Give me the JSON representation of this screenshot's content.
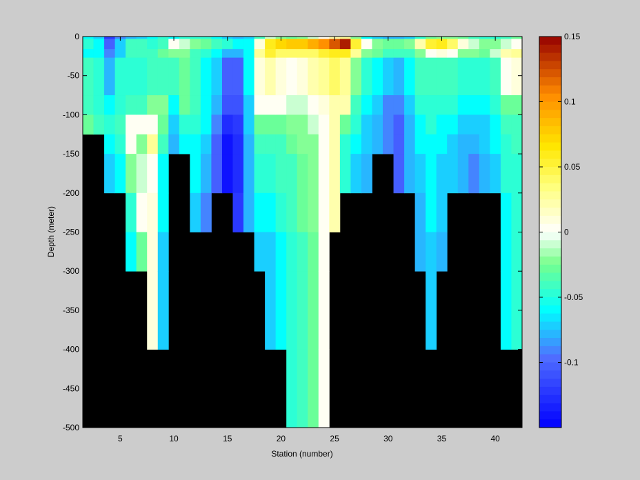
{
  "chart_data": {
    "type": "heatmap",
    "title": "",
    "xlabel": "Station (number)",
    "ylabel": "Depth (meter)",
    "xlim": [
      1.5,
      42.5
    ],
    "ylim": [
      -500,
      0
    ],
    "xticks": [
      5,
      10,
      15,
      20,
      25,
      30,
      35,
      40
    ],
    "yticks": [
      0,
      -50,
      -100,
      -150,
      -200,
      -250,
      -300,
      -350,
      -400,
      -450,
      -500
    ],
    "grid": false,
    "masked_color": "#000000",
    "colorbar": {
      "location": "right",
      "range": [
        -0.15,
        0.15
      ],
      "ticks": [
        0.15,
        0.1,
        0.05,
        0,
        -0.05,
        -0.1
      ],
      "colormap": "jet-white"
    },
    "stations": [
      2,
      3,
      4,
      5,
      6,
      7,
      8,
      9,
      10,
      11,
      12,
      13,
      14,
      15,
      16,
      17,
      18,
      19,
      20,
      21,
      22,
      23,
      24,
      25,
      26,
      27,
      28,
      29,
      30,
      31,
      32,
      33,
      34,
      35,
      36,
      37,
      38,
      39,
      40,
      41,
      42
    ],
    "depths": [
      0,
      -5,
      -20,
      -40,
      -60,
      -80,
      -100,
      -125,
      -150,
      -175,
      -200,
      -225,
      -250,
      -275,
      -300,
      -325,
      -350,
      -375,
      -400,
      -425,
      -450,
      -475,
      -500
    ],
    "depth_bin_edges": [
      0,
      -3,
      -16,
      -27,
      -75,
      -100,
      -125,
      -150,
      -200,
      -250,
      -300,
      -400,
      -500
    ],
    "max_depth": [
      -125,
      -125,
      -200,
      -200,
      -300,
      -300,
      -400,
      -400,
      -150,
      -150,
      -250,
      -250,
      -200,
      -200,
      -250,
      -250,
      -300,
      -400,
      -400,
      -500,
      -500,
      -500,
      -500,
      -250,
      -200,
      -200,
      -200,
      -150,
      -150,
      -200,
      -200,
      -300,
      -400,
      -300,
      -200,
      -200,
      -200,
      -200,
      -200,
      -400,
      -400
    ],
    "values": [
      [
        -0.06,
        -0.05,
        -0.06,
        -0.04,
        -0.04,
        -0.03,
        -0.05,
        -0.06,
        -0.07,
        -0.08
      ],
      [
        -0.07,
        -0.06,
        -0.06,
        -0.05,
        -0.05,
        -0.04,
        -0.07,
        -0.07,
        -0.08,
        -0.09
      ],
      [
        -0.12,
        -0.1,
        -0.09,
        -0.08,
        -0.06,
        -0.05,
        -0.06,
        -0.07,
        -0.08,
        -0.1
      ],
      [
        -0.09,
        -0.07,
        -0.07,
        -0.05,
        -0.05,
        -0.04,
        -0.05,
        -0.06,
        -0.07,
        -0.08
      ],
      [
        -0.08,
        -0.04,
        -0.04,
        -0.05,
        -0.04,
        0.0,
        0.0,
        -0.02,
        -0.05,
        -0.06
      ],
      [
        -0.07,
        -0.04,
        -0.04,
        -0.05,
        -0.04,
        0.0,
        -0.02,
        -0.01,
        0.0,
        -0.03
      ],
      [
        -0.06,
        -0.05,
        -0.04,
        -0.04,
        -0.02,
        0.0,
        0.03,
        0.0,
        0.01,
        0.01
      ],
      [
        -0.05,
        -0.04,
        -0.03,
        -0.04,
        -0.02,
        -0.03,
        -0.04,
        -0.06,
        -0.06,
        -0.07
      ],
      [
        -0.06,
        0.0,
        -0.02,
        -0.04,
        -0.06,
        -0.07,
        -0.08,
        -0.08,
        -0.08,
        -0.09
      ],
      [
        -0.05,
        -0.01,
        -0.02,
        -0.03,
        -0.03,
        -0.05,
        -0.06,
        -0.06,
        -0.07,
        -0.08
      ],
      [
        -0.05,
        -0.02,
        -0.04,
        -0.04,
        -0.04,
        -0.05,
        -0.06,
        -0.06,
        -0.07,
        -0.08
      ],
      [
        -0.05,
        -0.03,
        -0.05,
        -0.06,
        -0.06,
        -0.06,
        -0.07,
        -0.08,
        -0.09,
        -0.1
      ],
      [
        -0.06,
        -0.04,
        -0.06,
        -0.07,
        -0.08,
        -0.09,
        -0.1,
        -0.1,
        -0.1,
        -0.11
      ],
      [
        -0.07,
        -0.05,
        -0.08,
        -0.1,
        -0.11,
        -0.13,
        -0.14,
        -0.14,
        -0.14,
        -0.14
      ],
      [
        -0.08,
        -0.06,
        -0.08,
        -0.1,
        -0.11,
        -0.12,
        -0.13,
        -0.13,
        -0.12,
        -0.12
      ],
      [
        -0.07,
        -0.06,
        -0.06,
        -0.06,
        -0.07,
        -0.07,
        -0.08,
        -0.08,
        -0.08,
        -0.09
      ],
      [
        -0.04,
        0.01,
        0.03,
        0.01,
        0.0,
        -0.03,
        -0.04,
        -0.05,
        -0.06,
        -0.07
      ],
      [
        -0.01,
        0.06,
        0.05,
        0.02,
        0.0,
        -0.03,
        -0.04,
        -0.05,
        -0.06,
        -0.07
      ],
      [
        -0.02,
        0.07,
        0.04,
        0.01,
        0.0,
        -0.03,
        -0.04,
        -0.04,
        -0.05,
        -0.06
      ],
      [
        -0.03,
        0.08,
        0.04,
        0.0,
        -0.01,
        -0.02,
        -0.03,
        -0.04,
        -0.04,
        -0.05
      ],
      [
        -0.02,
        0.08,
        0.04,
        0.01,
        -0.01,
        -0.02,
        -0.02,
        -0.03,
        -0.03,
        -0.04
      ],
      [
        -0.01,
        0.09,
        0.04,
        0.02,
        0.0,
        -0.01,
        -0.02,
        -0.02,
        -0.02,
        -0.03
      ],
      [
        0.0,
        0.1,
        0.05,
        0.03,
        0.01,
        0.0,
        0.0,
        0.0,
        0.0,
        0.0
      ],
      [
        0.02,
        0.12,
        0.06,
        0.04,
        0.02,
        0.02,
        0.02,
        0.02,
        0.02,
        0.02
      ],
      [
        0.03,
        0.14,
        0.06,
        0.03,
        0.02,
        -0.03,
        -0.05,
        -0.05,
        -0.06,
        -0.07
      ],
      [
        -0.02,
        0.05,
        0.03,
        -0.02,
        -0.04,
        -0.05,
        -0.06,
        -0.07,
        -0.07,
        -0.08
      ],
      [
        -0.06,
        0.0,
        -0.02,
        -0.05,
        -0.06,
        -0.07,
        -0.07,
        -0.08,
        -0.09,
        -0.09
      ],
      [
        -0.07,
        -0.02,
        -0.03,
        -0.06,
        -0.07,
        -0.08,
        -0.08,
        -0.09,
        -0.09,
        -0.1
      ],
      [
        -0.08,
        -0.03,
        -0.04,
        -0.07,
        -0.09,
        -0.09,
        -0.09,
        -0.09,
        -0.09,
        -0.1
      ],
      [
        -0.08,
        -0.03,
        -0.04,
        -0.08,
        -0.09,
        -0.1,
        -0.1,
        -0.1,
        -0.11,
        -0.11
      ],
      [
        -0.07,
        -0.02,
        -0.04,
        -0.06,
        -0.07,
        -0.08,
        -0.08,
        -0.08,
        -0.09,
        -0.09
      ],
      [
        -0.05,
        0.02,
        -0.02,
        -0.04,
        -0.05,
        -0.06,
        -0.06,
        -0.07,
        -0.08,
        -0.08
      ],
      [
        -0.03,
        0.05,
        0.0,
        -0.04,
        -0.05,
        -0.05,
        -0.06,
        -0.06,
        -0.06,
        -0.07
      ],
      [
        -0.02,
        0.06,
        0.01,
        -0.04,
        -0.05,
        -0.06,
        -0.06,
        -0.07,
        -0.07,
        -0.08
      ],
      [
        -0.02,
        0.04,
        0.0,
        -0.04,
        -0.05,
        -0.06,
        -0.07,
        -0.07,
        -0.08,
        -0.08
      ],
      [
        -0.03,
        0.01,
        -0.02,
        -0.05,
        -0.06,
        -0.07,
        -0.08,
        -0.08,
        -0.09,
        -0.09
      ],
      [
        -0.04,
        -0.01,
        -0.02,
        -0.05,
        -0.06,
        -0.07,
        -0.08,
        -0.09,
        -0.09,
        -0.09
      ],
      [
        -0.05,
        -0.02,
        -0.03,
        -0.05,
        -0.06,
        -0.07,
        -0.07,
        -0.08,
        -0.08,
        -0.09
      ],
      [
        -0.05,
        -0.02,
        -0.01,
        -0.04,
        -0.05,
        -0.06,
        -0.06,
        -0.07,
        -0.07,
        -0.08
      ],
      [
        -0.04,
        -0.01,
        0.02,
        0.0,
        -0.03,
        -0.04,
        -0.05,
        -0.05,
        -0.06,
        -0.06
      ],
      [
        -0.03,
        0.0,
        0.03,
        0.01,
        -0.03,
        -0.04,
        -0.04,
        -0.05,
        -0.05,
        -0.05
      ]
    ]
  }
}
